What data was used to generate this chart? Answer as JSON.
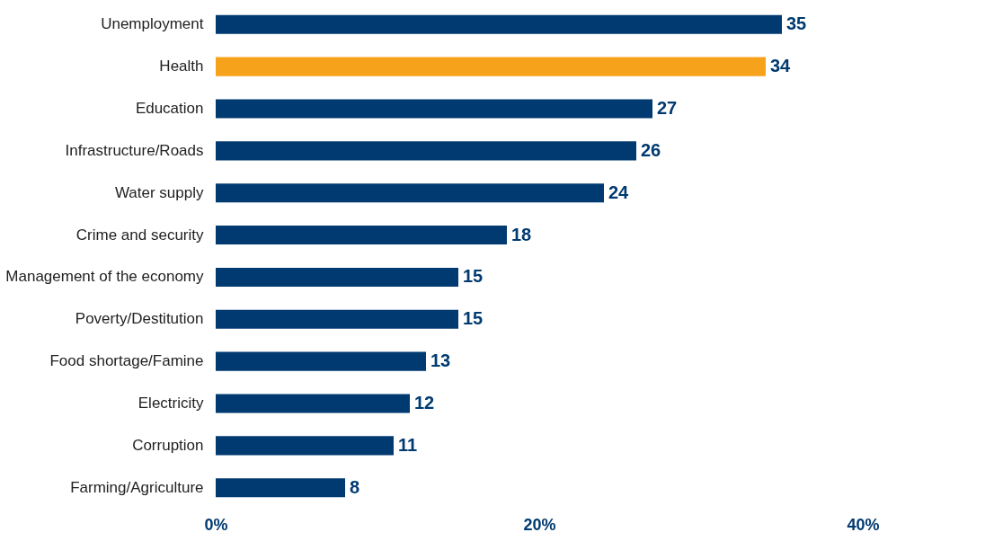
{
  "chart_data": {
    "type": "bar",
    "orientation": "horizontal",
    "categories": [
      "Unemployment",
      "Health",
      "Education",
      "Infrastructure/Roads",
      "Water supply",
      "Crime and security",
      "Management of the economy",
      "Poverty/Destitution",
      "Food shortage/Famine",
      "Electricity",
      "Corruption",
      "Farming/Agriculture"
    ],
    "values": [
      35,
      34,
      27,
      26,
      24,
      18,
      15,
      15,
      13,
      12,
      11,
      8
    ],
    "colors": [
      "#003a70",
      "#f7a21b",
      "#003a70",
      "#003a70",
      "#003a70",
      "#003a70",
      "#003a70",
      "#003a70",
      "#003a70",
      "#003a70",
      "#003a70",
      "#003a70"
    ],
    "xlim": [
      0,
      40
    ],
    "xticks": [
      {
        "value": 0,
        "label": "0%"
      },
      {
        "value": 20,
        "label": "20%"
      },
      {
        "value": 40,
        "label": "40%"
      }
    ],
    "data_labels": true,
    "grid": false
  }
}
